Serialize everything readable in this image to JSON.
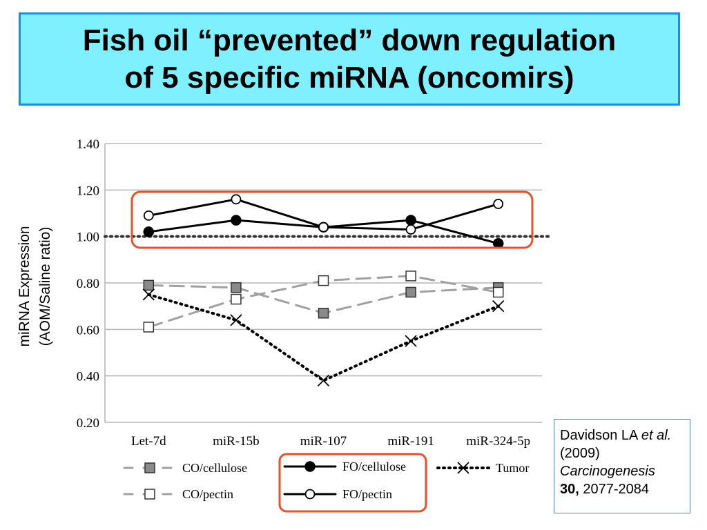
{
  "slide": {
    "title": "Fish oil “prevented” down regulation\nof 5 specific miRNA (oncomirs)"
  },
  "citation": {
    "authors": "Davidson LA",
    "et_al": "et al.",
    "year": "(2009)",
    "journal": "Carcinogenesis",
    "volume": "30,",
    "pages": "2077-2084"
  },
  "colors": {
    "title_background": "#7ff0ff",
    "title_border": "#1a8fe0",
    "highlight": "#e8522a",
    "citation_border": "#2b8fd6"
  },
  "chart_data": {
    "type": "line",
    "title": "",
    "xlabel": "",
    "ylabel_line1": "miRNA Expression",
    "ylabel_line2": "(AOM/Saline ratio)",
    "ylim": [
      0.2,
      1.4
    ],
    "yticks": [
      "0.20",
      "0.40",
      "0.60",
      "0.80",
      "1.00",
      "1.20",
      "1.40"
    ],
    "categories": [
      "Let-7d",
      "miR-15b",
      "miR-107",
      "miR-191",
      "miR-324-5p"
    ],
    "grid": true,
    "reference_line": 1.0,
    "legend_position": "bottom",
    "series": [
      {
        "name": "CO/cellulose",
        "values": [
          0.79,
          0.78,
          0.67,
          0.76,
          0.78
        ],
        "color": "#999999",
        "dash": "dashed",
        "marker": "filled-square"
      },
      {
        "name": "CO/pectin",
        "values": [
          0.61,
          0.73,
          0.81,
          0.83,
          0.76
        ],
        "color": "#999999",
        "dash": "dashed",
        "marker": "open-square"
      },
      {
        "name": "FO/cellulose",
        "values": [
          1.02,
          1.07,
          1.04,
          1.07,
          0.97
        ],
        "color": "#000000",
        "dash": "solid",
        "marker": "filled-circle"
      },
      {
        "name": "FO/pectin",
        "values": [
          1.09,
          1.16,
          1.04,
          1.03,
          1.14
        ],
        "color": "#000000",
        "dash": "solid",
        "marker": "open-circle"
      },
      {
        "name": "Tumor",
        "values": [
          0.75,
          0.64,
          0.38,
          0.55,
          0.7
        ],
        "color": "#000000",
        "dash": "dotted",
        "marker": "x"
      }
    ]
  }
}
